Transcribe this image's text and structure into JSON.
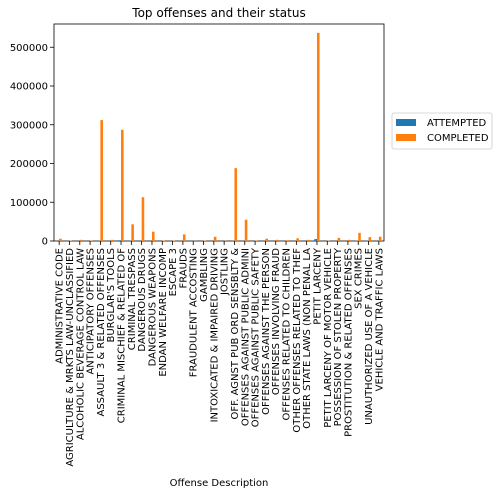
{
  "chart_data": {
    "type": "bar",
    "title": "Top offenses and their status",
    "xlabel": "Offense Description",
    "ylabel": "",
    "ylim": [
      0,
      560000
    ],
    "yticks": [
      0,
      100000,
      200000,
      300000,
      400000,
      500000
    ],
    "legend_position": "right",
    "categories": [
      "ADMINISTRATIVE CODE",
      "AGRICULTURE & MRKTS LAW-UNCLASSIFIED",
      "ALCOHOLIC BEVERAGE CONTROL LAW",
      "ANTICIPATORY OFFENSES",
      "ASSAULT 3 & RELATED OFFENSES",
      "BURGLAR'S TOOLS",
      "CRIMINAL MISCHIEF & RELATED OF",
      "CRIMINAL TRESPASS",
      "DANGEROUS DRUGS",
      "DANGEROUS WEAPONS",
      "ENDAN WELFARE INCOMP",
      "ESCAPE 3",
      "FRAUDS",
      "FRAUDULENT ACCOSTING",
      "GAMBLING",
      "INTOXICATED & IMPAIRED DRIVING",
      "JOSTLING",
      "OFF. AGNST PUB ORD SENSBLTY &",
      "OFFENSES AGAINST PUBLIC ADMINI",
      "OFFENSES AGAINST PUBLIC SAFETY",
      "OFFENSES AGAINST THE PERSON",
      "OFFENSES INVOLVING FRAUD",
      "OFFENSES RELATED TO CHILDREN",
      "OTHER OFFENSES RELATED TO THEF",
      "OTHER STATE LAWS (NON PENAL LA",
      "PETIT LARCENY",
      "PETIT LARCENY OF MOTOR VEHICLE",
      "POSSESSION OF STOLEN PROPERTY",
      "PROSTITUTION & RELATED OFFENSES",
      "SEX CRIMES",
      "UNAUTHORIZED USE OF A VEHICLE",
      "VEHICLE AND TRAFFIC LAWS"
    ],
    "series": [
      {
        "name": "ATTEMPTED",
        "color": "#1f77b4",
        "values": [
          0,
          0,
          0,
          0,
          1500,
          0,
          2000,
          300,
          0,
          0,
          0,
          0,
          300,
          0,
          0,
          0,
          0,
          500,
          200,
          0,
          0,
          0,
          0,
          0,
          0,
          5000,
          0,
          0,
          0,
          1000,
          500,
          0
        ]
      },
      {
        "name": "COMPLETED",
        "color": "#ff7f0e",
        "values": [
          6000,
          1000,
          3000,
          1000,
          312000,
          3000,
          287000,
          43000,
          113000,
          24000,
          1500,
          1000,
          17000,
          500,
          1500,
          11000,
          500,
          188000,
          55000,
          1500,
          6000,
          3000,
          2000,
          7000,
          3000,
          537000,
          1000,
          8000,
          3000,
          21000,
          10000,
          11000
        ]
      }
    ]
  }
}
